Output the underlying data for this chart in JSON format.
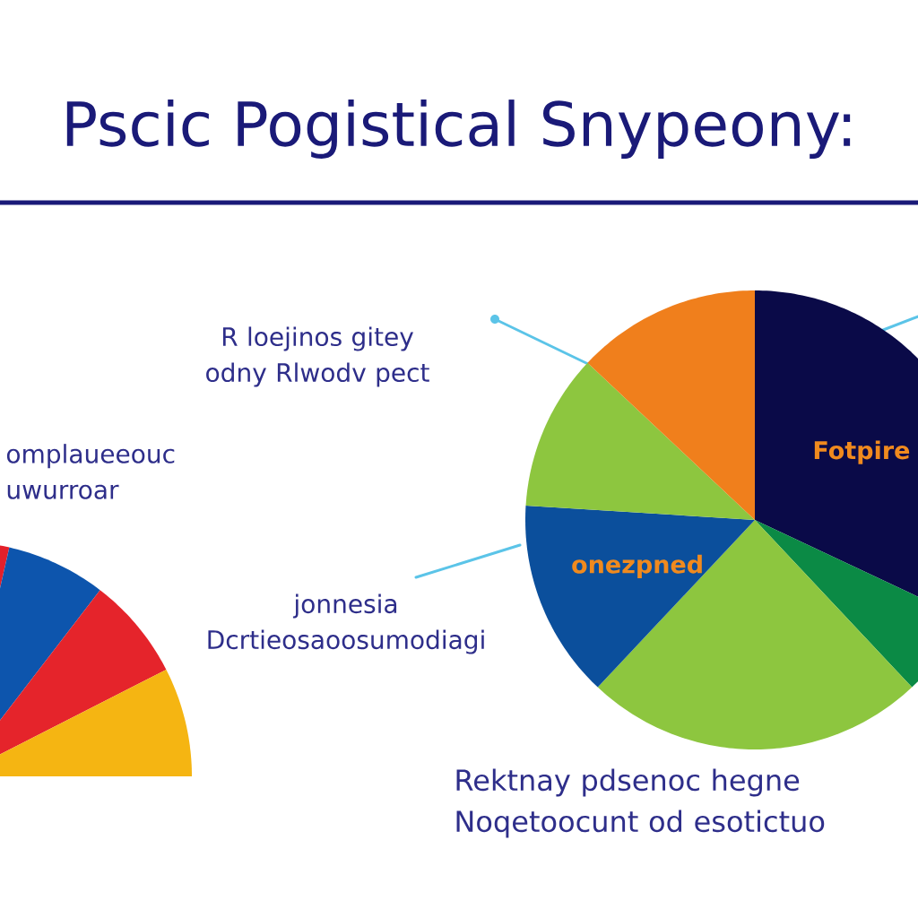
{
  "chart_data": [
    {
      "type": "pie",
      "title": "Pscic Pogistical Snypeony:",
      "categories": [
        "Fotpire",
        null,
        null,
        "onezpned",
        null,
        null
      ],
      "values": [
        32,
        6,
        24,
        14,
        11,
        13
      ],
      "colors": [
        "#0a0a48",
        "#0b8a45",
        "#8dc63f",
        "#0b4f9c",
        "#8dc63f",
        "#f07f1c"
      ],
      "annotations": [
        "R loejinos gitey odny Rlwodv pect",
        "jonnesia Dcrtieosaoosumodiagi",
        "Rektnay pdsenoc hegne Noqetoocunt od esotictuo"
      ]
    },
    {
      "type": "pie",
      "categories": [
        null,
        null,
        null,
        null
      ],
      "values": [
        3,
        31,
        32,
        34
      ],
      "colors": [
        "#e3202a",
        "#0d55ad",
        "#e5242b",
        "#f5b512"
      ],
      "annotations": [
        "omplaueeouc uwurroar"
      ]
    }
  ]
}
